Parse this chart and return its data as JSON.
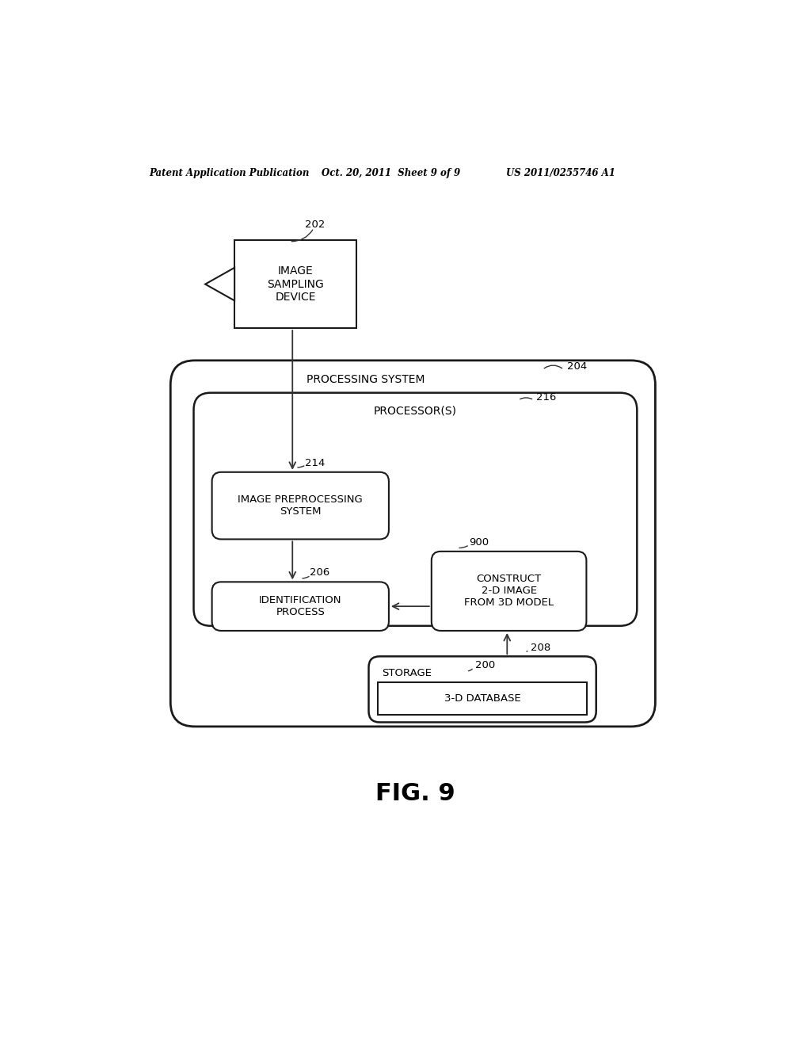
{
  "bg_color": "#ffffff",
  "header_left": "Patent Application Publication",
  "header_mid": "Oct. 20, 2011  Sheet 9 of 9",
  "header_right": "US 2011/0255746 A1",
  "fig_label": "FIG. 9",
  "label_202": "202",
  "label_204": "204",
  "label_216": "216",
  "label_214": "214",
  "label_206": "206",
  "label_208": "208",
  "label_900": "900",
  "label_200": "200",
  "box_image_sampling": "IMAGE\nSAMPLING\nDEVICE",
  "box_processing_system": "PROCESSING SYSTEM",
  "box_processors": "PROCESSOR(S)",
  "box_image_preprocessing": "IMAGE PREPROCESSING\nSYSTEM",
  "box_identification": "IDENTIFICATION\nPROCESS",
  "box_construct": "CONSTRUCT\n2-D IMAGE\nFROM 3D MODEL",
  "box_storage": "STORAGE",
  "box_3d_database": "3-D DATABASE"
}
